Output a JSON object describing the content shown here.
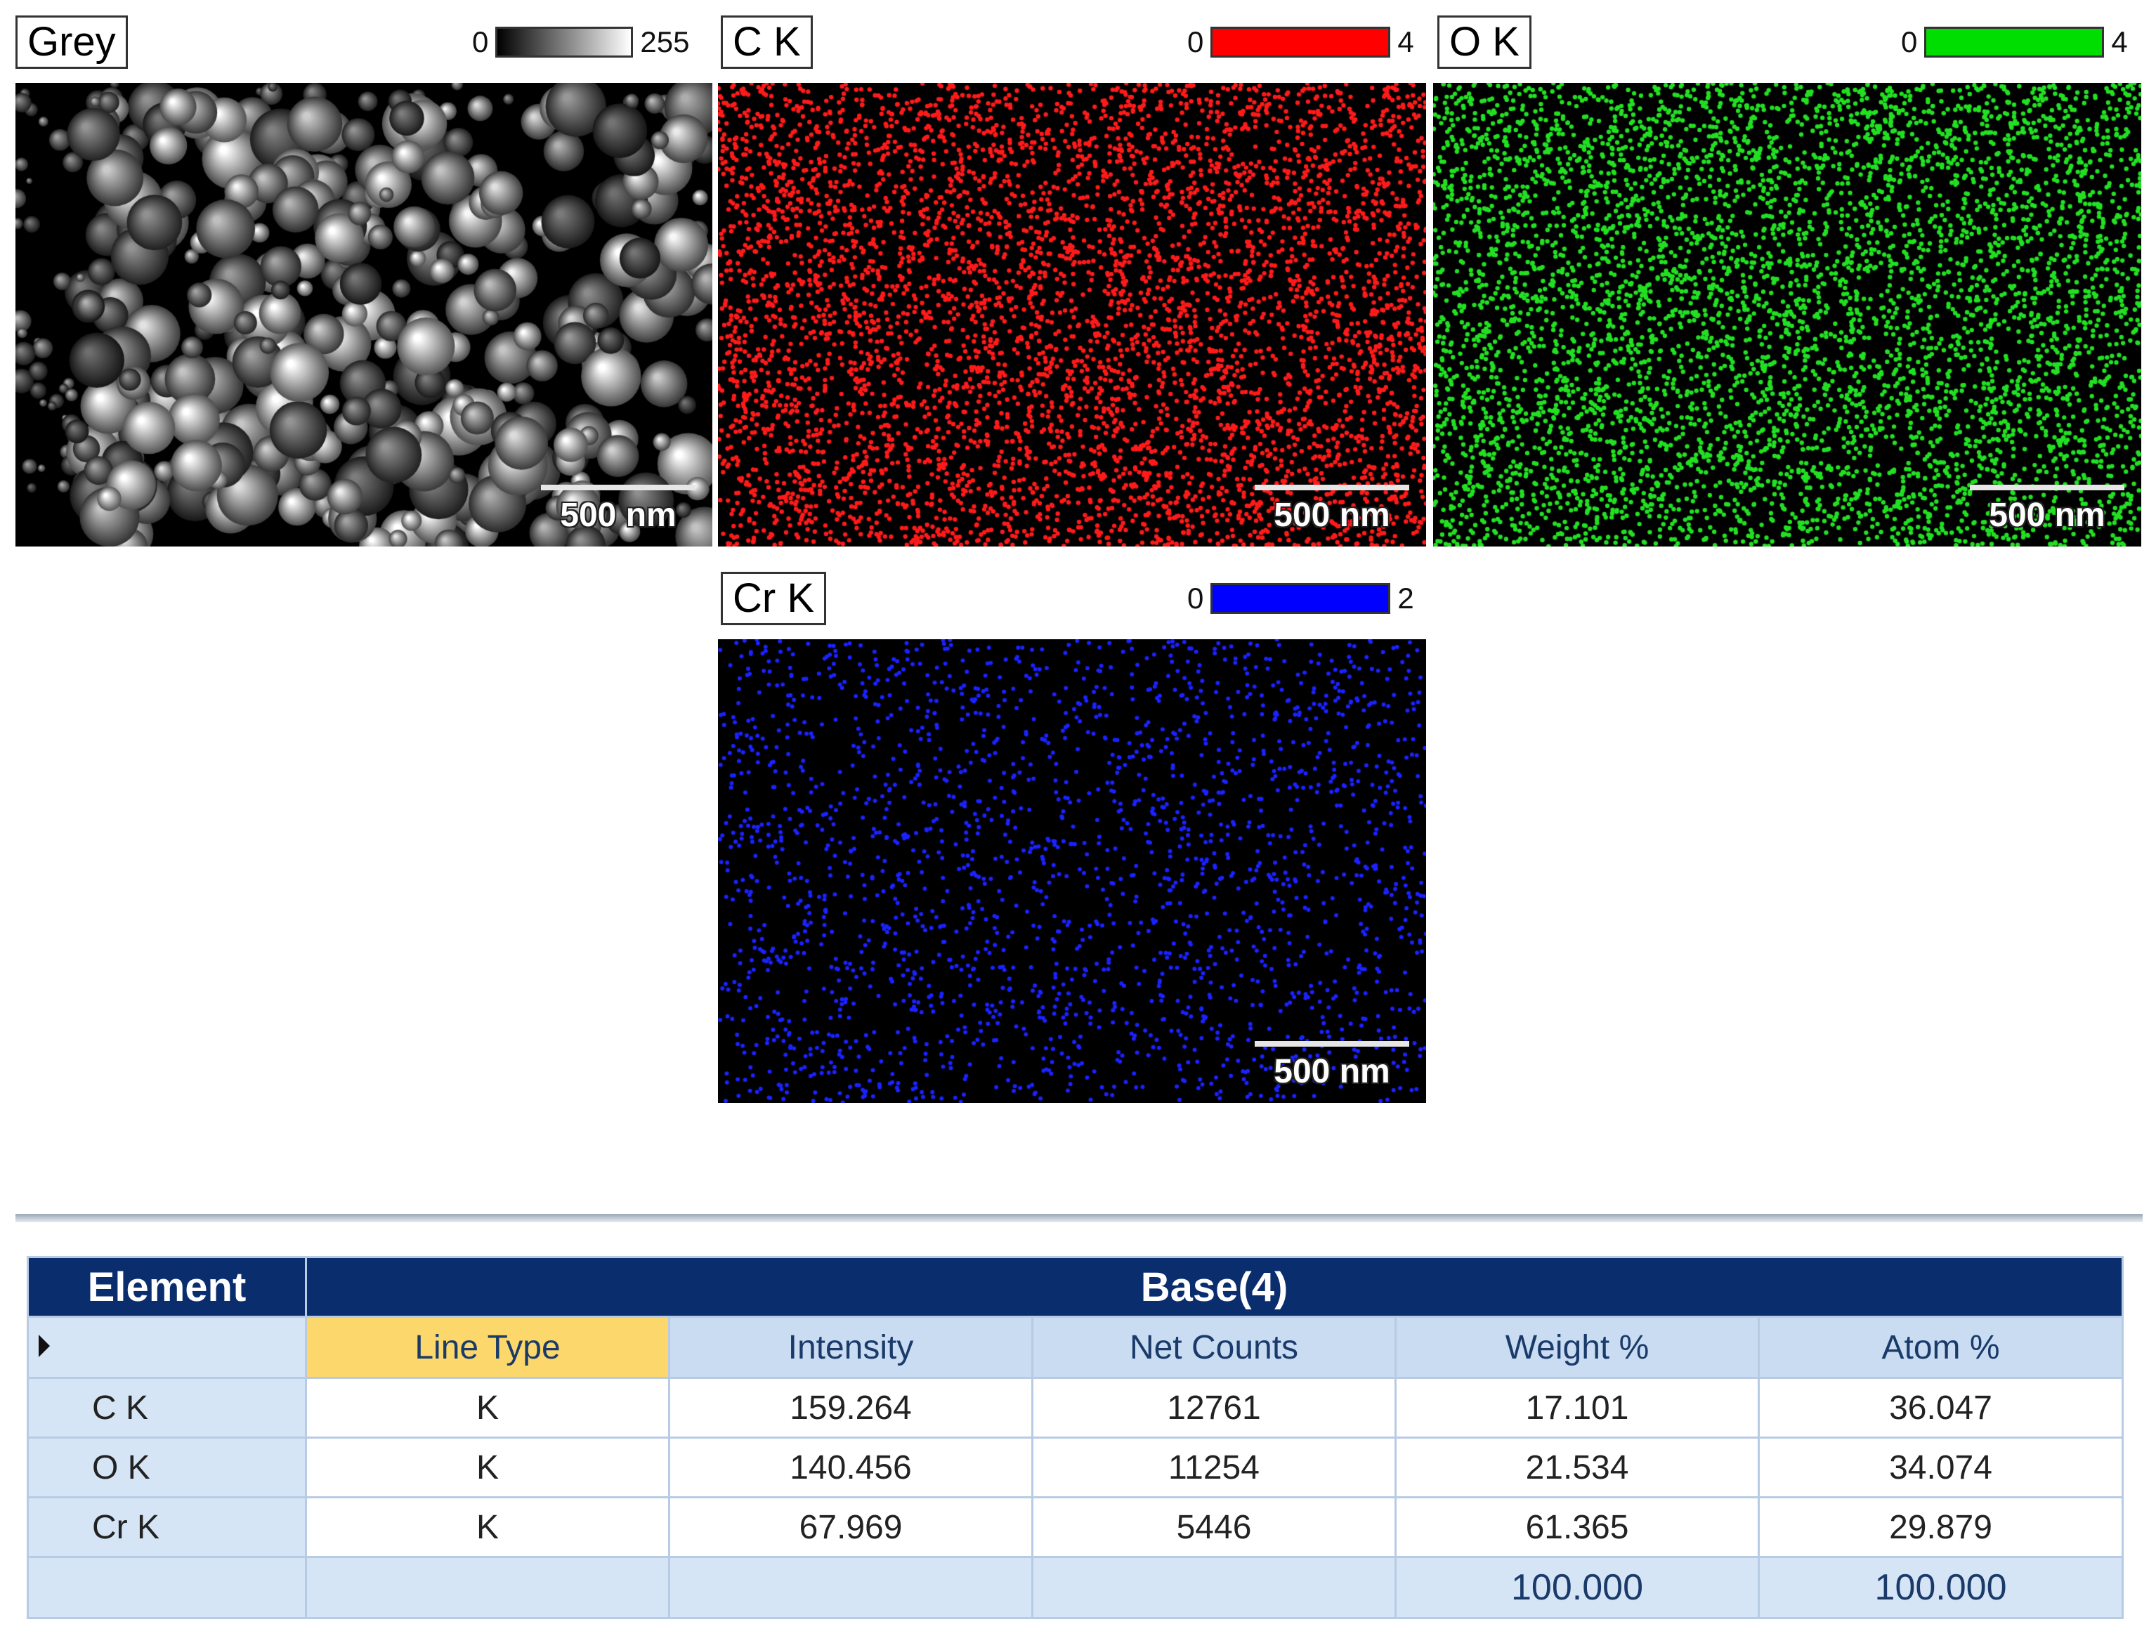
{
  "maps": [
    {
      "id": "grey",
      "label": "Grey",
      "legend_min": "0",
      "legend_max": "255",
      "scale_bar": "500 nm",
      "color": "#ffffff",
      "gradient": "linear-gradient(90deg,#000,#fff)"
    },
    {
      "id": "ck",
      "label": "C K",
      "legend_min": "0",
      "legend_max": "4",
      "scale_bar": "500 nm",
      "color": "#ff1a1a",
      "gradient": "#ff0000"
    },
    {
      "id": "ok",
      "label": "O K",
      "legend_min": "0",
      "legend_max": "4",
      "scale_bar": "500 nm",
      "color": "#22e022",
      "gradient": "#00dd00"
    },
    {
      "id": "crk",
      "label": "Cr K",
      "legend_min": "0",
      "legend_max": "2",
      "scale_bar": "500 nm",
      "color": "#1a22ff",
      "gradient": "#0000ff"
    }
  ],
  "table": {
    "element_header": "Element",
    "group_header": "Base(4)",
    "columns": [
      "Line Type",
      "Intensity",
      "Net Counts",
      "Weight %",
      "Atom %"
    ],
    "rows": [
      {
        "element": "C K",
        "line_type": "K",
        "intensity": "159.264",
        "net_counts": "12761",
        "weight": "17.101",
        "atom": "36.047"
      },
      {
        "element": "O K",
        "line_type": "K",
        "intensity": "140.456",
        "net_counts": "11254",
        "weight": "21.534",
        "atom": "34.074"
      },
      {
        "element": "Cr K",
        "line_type": "K",
        "intensity": "67.969",
        "net_counts": "5446",
        "weight": "61.365",
        "atom": "29.879"
      }
    ],
    "totals": {
      "weight": "100.000",
      "atom": "100.000"
    }
  }
}
